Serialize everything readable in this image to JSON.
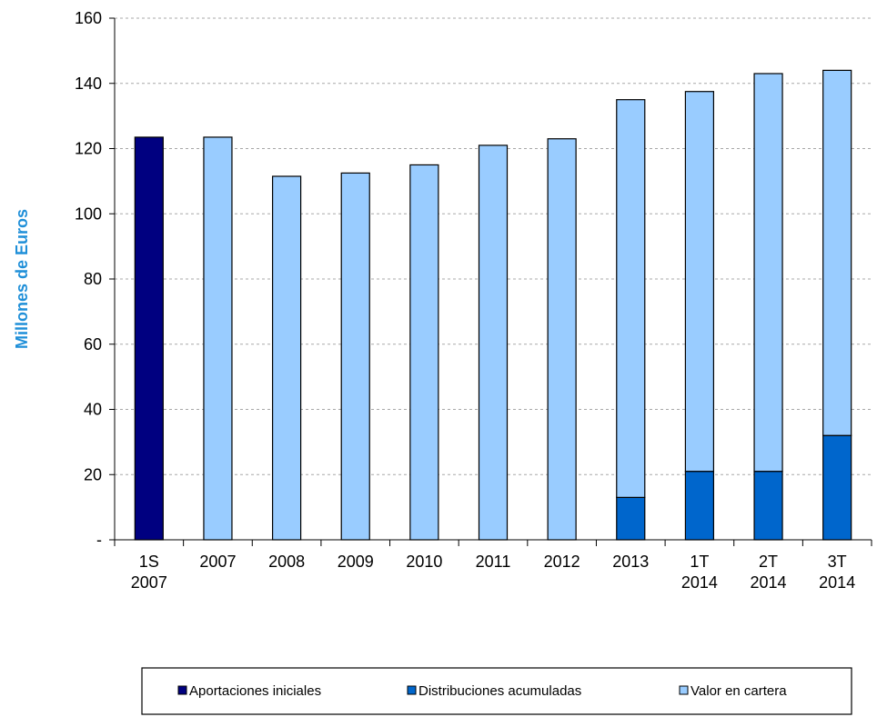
{
  "chart_data": {
    "type": "bar",
    "stacked": true,
    "categories": [
      [
        "1S",
        "2007"
      ],
      [
        "2007"
      ],
      [
        "2008"
      ],
      [
        "2009"
      ],
      [
        "2010"
      ],
      [
        "2011"
      ],
      [
        "2012"
      ],
      [
        "2013"
      ],
      [
        "1T",
        "2014"
      ],
      [
        "2T",
        "2014"
      ],
      [
        "3T",
        "2014"
      ]
    ],
    "series": [
      {
        "name": "Aportaciones iniciales",
        "color": "#000080",
        "values": [
          123.5,
          0,
          0,
          0,
          0,
          0,
          0,
          0,
          0,
          0,
          0
        ]
      },
      {
        "name": "Distribuciones acumuladas",
        "color": "#0066cc",
        "values": [
          0,
          0,
          0,
          0,
          0,
          0,
          0,
          13,
          21,
          21,
          32
        ]
      },
      {
        "name": "Valor en cartera",
        "color": "#99ccff",
        "values": [
          0,
          123.5,
          111.5,
          112.5,
          115,
          121,
          123,
          122,
          116.5,
          122,
          112
        ]
      }
    ],
    "ylabel": "Millones de Euros",
    "ylabel_color": "#1f8fd8",
    "ylim": [
      0,
      160
    ],
    "yticks": [
      {
        "value": 0,
        "label": "-"
      },
      {
        "value": 20,
        "label": "20"
      },
      {
        "value": 40,
        "label": "40"
      },
      {
        "value": 60,
        "label": "60"
      },
      {
        "value": 80,
        "label": "80"
      },
      {
        "value": 100,
        "label": "100"
      },
      {
        "value": 120,
        "label": "120"
      },
      {
        "value": 140,
        "label": "140"
      },
      {
        "value": 160,
        "label": "160"
      }
    ],
    "grid": true,
    "legend_position": "bottom"
  }
}
